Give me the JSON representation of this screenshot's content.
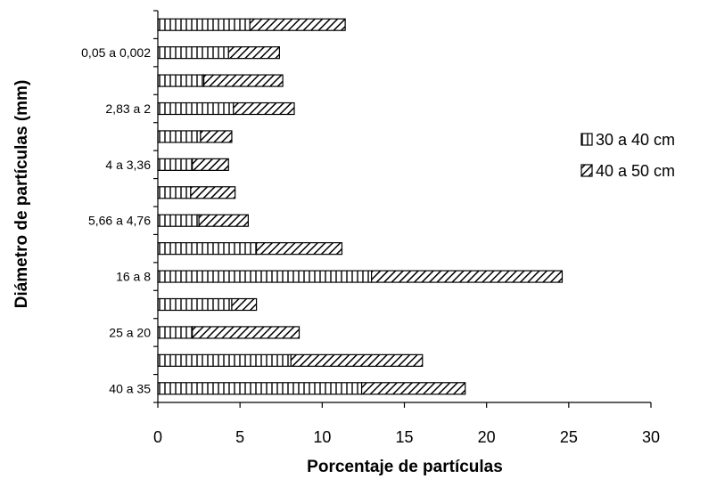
{
  "chart_data": {
    "type": "bar",
    "orientation": "horizontal",
    "stacked": true,
    "xlabel": "Porcentaje de partículas",
    "ylabel": "Diámetro de partículas (mm)",
    "xlim": [
      0,
      30
    ],
    "xticks": [
      "0",
      "5",
      "10",
      "15",
      "20",
      "25",
      "30"
    ],
    "grid": false,
    "legend_position": "right",
    "categories": [
      "40 a 35",
      "",
      "25 a 20",
      "",
      "16 a 8",
      "",
      "5,66 a 4,76",
      "",
      "4 a 3,36",
      "",
      "2,83 a 2",
      "",
      "0,05 a 0,002",
      ""
    ],
    "series": [
      {
        "name": "30 a 40 cm",
        "pattern": "vertical-lines",
        "values": [
          12.4,
          8.1,
          2.1,
          4.5,
          13.0,
          6.0,
          2.5,
          2.0,
          2.1,
          2.6,
          4.6,
          2.8,
          4.3,
          5.6
        ]
      },
      {
        "name": "40 a 50 cm",
        "pattern": "diagonal-lines",
        "values": [
          6.3,
          8.0,
          6.5,
          1.5,
          11.6,
          5.2,
          3.0,
          2.7,
          2.2,
          1.9,
          3.7,
          4.8,
          3.1,
          5.8
        ]
      }
    ]
  }
}
